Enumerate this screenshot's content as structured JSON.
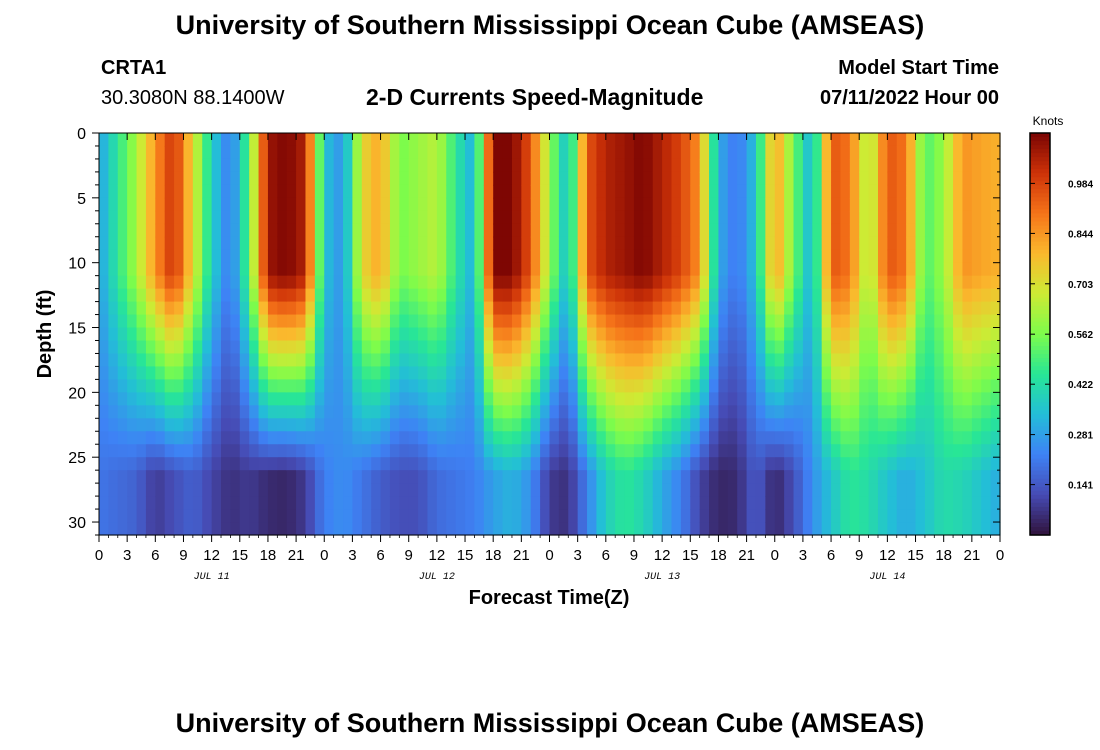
{
  "header": {
    "title": "University of Southern Mississippi Ocean Cube (AMSEAS)",
    "station_id": "CRTA1",
    "station_coords": "30.3080N  88.1400W",
    "chart_title": "2-D Currents Speed-Magnitude",
    "model_start_label": "Model Start Time",
    "model_start_value": "07/11/2022 Hour 00"
  },
  "footer": {
    "title": "University of Southern Mississippi Ocean Cube (AMSEAS)"
  },
  "chart_data": {
    "type": "heatmap",
    "title": "2-D Currents Speed-Magnitude",
    "xlabel": "Forecast Time(Z)",
    "ylabel": "Depth (ft)",
    "x_tick_labels": [
      "0",
      "3",
      "6",
      "9",
      "12",
      "15",
      "18",
      "21",
      "0",
      "3",
      "6",
      "9",
      "12",
      "15",
      "18",
      "21",
      "0",
      "3",
      "6",
      "9",
      "12",
      "15",
      "18",
      "21",
      "0",
      "3",
      "6",
      "9",
      "12",
      "15",
      "18",
      "21",
      "0"
    ],
    "x_range_hours": [
      0,
      96
    ],
    "day_labels": [
      {
        "label": "JUL 11",
        "hour": 12
      },
      {
        "label": "JUL 12",
        "hour": 36
      },
      {
        "label": "JUL 13",
        "hour": 60
      },
      {
        "label": "JUL 14",
        "hour": 84
      }
    ],
    "y_ticks": [
      0,
      5,
      10,
      15,
      20,
      25,
      30
    ],
    "y_range": [
      0,
      31
    ],
    "y_inverted": true,
    "colorbar": {
      "title": "Knots",
      "ticks": [
        0.141,
        0.281,
        0.422,
        0.562,
        0.703,
        0.844,
        0.984
      ],
      "range": [
        0,
        1.125
      ],
      "colormap": "turbo"
    },
    "speed_profile_by_hour": {
      "hours": [
        0,
        2,
        4,
        6,
        8,
        10,
        12,
        14,
        16,
        18,
        20,
        22,
        24,
        26,
        28,
        30,
        32,
        34,
        36,
        38,
        40,
        42,
        44,
        46,
        48,
        50,
        52,
        54,
        56,
        58,
        60,
        62,
        64,
        66,
        68,
        70,
        72,
        74,
        76,
        78,
        80,
        82,
        84,
        86,
        88,
        90,
        92,
        94,
        96
      ],
      "surface_knots": [
        0.28,
        0.45,
        0.62,
        0.85,
        1.02,
        0.72,
        0.38,
        0.2,
        0.52,
        1.08,
        1.12,
        1.05,
        0.35,
        0.25,
        0.72,
        0.82,
        0.55,
        0.6,
        0.65,
        0.45,
        0.3,
        1.12,
        1.12,
        0.95,
        0.6,
        0.32,
        0.95,
        1.05,
        1.08,
        1.12,
        1.05,
        0.98,
        0.85,
        0.3,
        0.2,
        0.35,
        0.85,
        0.55,
        0.3,
        0.95,
        0.9,
        0.6,
        0.95,
        0.9,
        0.5,
        0.6,
        0.85,
        0.82,
        0.8
      ],
      "bottom_knots": [
        0.2,
        0.18,
        0.16,
        0.08,
        0.12,
        0.16,
        0.1,
        0.06,
        0.08,
        0.05,
        0.04,
        0.08,
        0.22,
        0.25,
        0.2,
        0.15,
        0.12,
        0.12,
        0.18,
        0.2,
        0.22,
        0.28,
        0.32,
        0.25,
        0.08,
        0.06,
        0.22,
        0.38,
        0.45,
        0.4,
        0.3,
        0.22,
        0.1,
        0.04,
        0.05,
        0.15,
        0.04,
        0.12,
        0.25,
        0.35,
        0.45,
        0.42,
        0.35,
        0.3,
        0.35,
        0.42,
        0.4,
        0.35,
        0.3
      ]
    }
  }
}
